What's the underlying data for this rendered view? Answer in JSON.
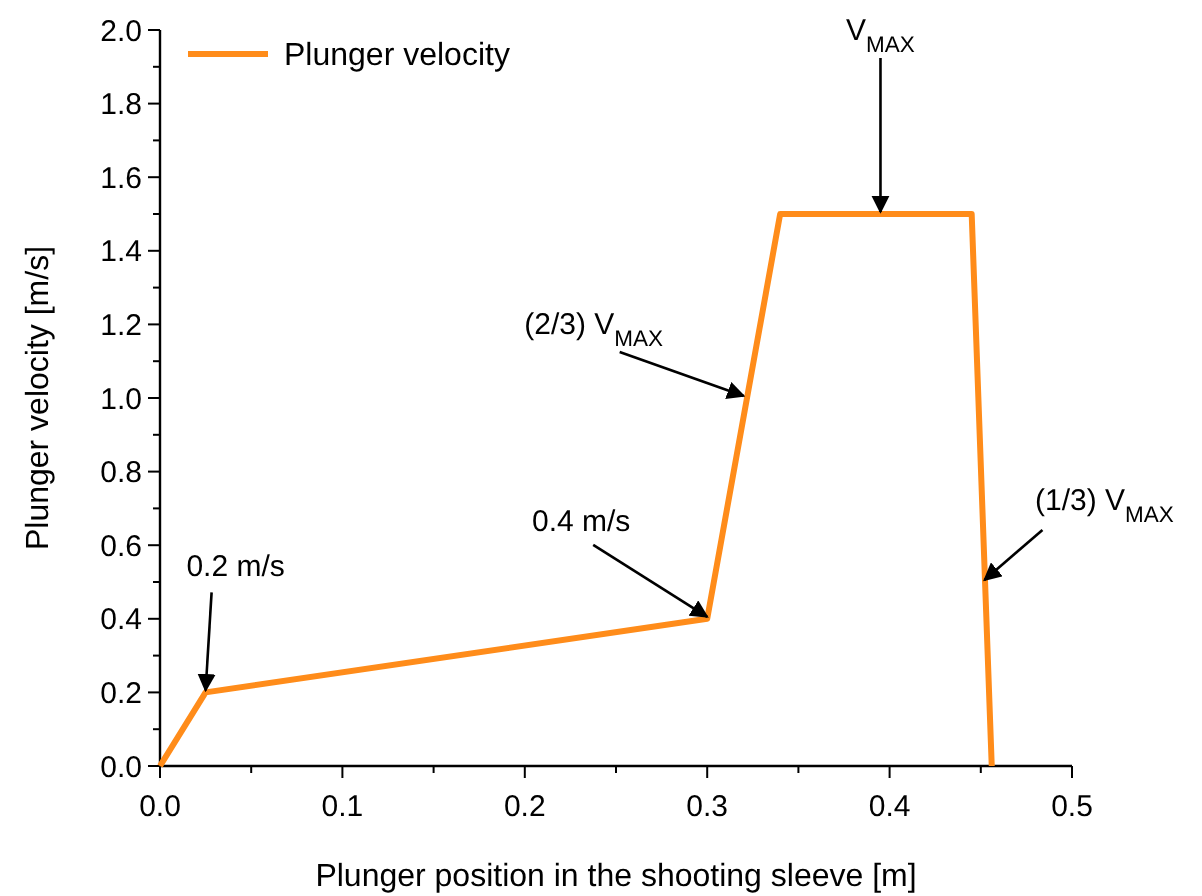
{
  "chart_data": {
    "type": "line",
    "xlabel": "Plunger position in the shooting sleeve [m]",
    "ylabel": "Plunger velocity [m/s]",
    "x": [
      0,
      0.025,
      0.3,
      0.34,
      0.445,
      0.456
    ],
    "series": [
      {
        "name": "Plunger velocity",
        "color": "#ff8c1a",
        "values": [
          0,
          0.2,
          0.4,
          1.5,
          1.5,
          0
        ]
      }
    ],
    "xlim": [
      0,
      0.5
    ],
    "ylim": [
      0,
      2.0
    ],
    "xticks": [
      {
        "value": 0,
        "label": "0.0"
      },
      {
        "value": 0.05,
        "label": null
      },
      0.1,
      {
        "value": 0.15,
        "label": null
      },
      0.2,
      {
        "value": 0.25,
        "label": null
      },
      0.3,
      {
        "value": 0.35,
        "label": null
      },
      0.4,
      {
        "value": 0.45,
        "label": null
      },
      0.5
    ],
    "yticks": [
      {
        "value": 0,
        "label": "0.0"
      },
      {
        "value": 0.1,
        "label": null
      },
      0.2,
      {
        "value": 0.3,
        "label": null
      },
      0.4,
      {
        "value": 0.5,
        "label": null
      },
      0.6,
      {
        "value": 0.7,
        "label": null
      },
      0.8,
      {
        "value": 0.9,
        "label": null
      },
      {
        "value": 1.0,
        "label": "1.0"
      },
      {
        "value": 1.1,
        "label": null
      },
      1.2,
      {
        "value": 1.3,
        "label": null
      },
      1.4,
      {
        "value": 1.5,
        "label": null
      },
      1.6,
      {
        "value": 1.7,
        "label": null
      },
      1.8,
      {
        "value": 1.9,
        "label": null
      },
      {
        "value": 2.0,
        "label": "2.0"
      }
    ],
    "annotations": [
      {
        "text": "0.2 m/s",
        "x": 0.025,
        "y": 0.2
      },
      {
        "text": "0.4 m/s",
        "x": 0.3,
        "y": 0.4
      },
      {
        "text": "(2/3) V$_{MAX}$",
        "x": 0.32,
        "y": 1.0
      },
      {
        "text": "V$_{MAX}$",
        "x": 0.395,
        "y": 1.5
      },
      {
        "text": "(1/3) V$_{MAX}$",
        "x": 0.452,
        "y": 0.5
      }
    ],
    "grid": false,
    "legend": "top left",
    "marker": "none",
    "line_style": "solid"
  }
}
